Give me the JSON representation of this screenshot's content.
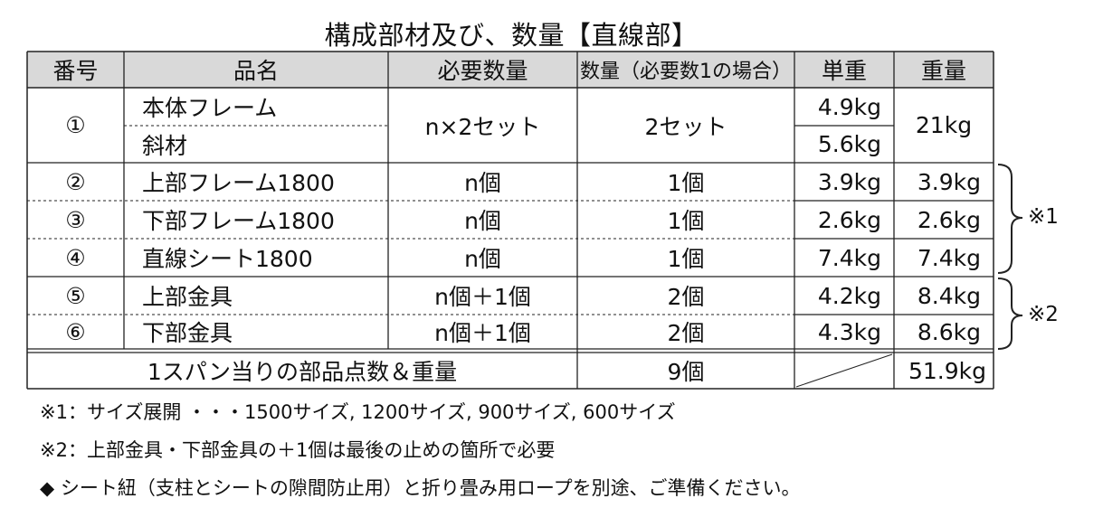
{
  "title": "構成部材及び、数量【直線部】",
  "header": {
    "no": "番号",
    "name": "品名",
    "required_qty": "必要数量",
    "qty_n1": "数量（必要数1の場合）",
    "unit_weight": "単重",
    "weight": "重量"
  },
  "rows": [
    {
      "no": "①",
      "name": "本体フレーム",
      "required_qty": "n×2セット",
      "qty": "2セット",
      "unit_weight": "4.9kg",
      "weight": "21kg"
    },
    {
      "name": "斜材",
      "unit_weight": "5.6kg"
    },
    {
      "no": "②",
      "name": "上部フレーム1800",
      "required_qty": "n個",
      "qty": "1個",
      "unit_weight": "3.9kg",
      "weight": "3.9kg"
    },
    {
      "no": "③",
      "name": "下部フレーム1800",
      "required_qty": "n個",
      "qty": "1個",
      "unit_weight": "2.6kg",
      "weight": "2.6kg"
    },
    {
      "no": "④",
      "name": "直線シート1800",
      "required_qty": "n個",
      "qty": "1個",
      "unit_weight": "7.4kg",
      "weight": "7.4kg"
    },
    {
      "no": "⑤",
      "name": "上部金具",
      "required_qty": "n個＋1個",
      "qty": "2個",
      "unit_weight": "4.2kg",
      "weight": "8.4kg"
    },
    {
      "no": "⑥",
      "name": "下部金具",
      "required_qty": "n個＋1個",
      "qty": "2個",
      "unit_weight": "4.3kg",
      "weight": "8.6kg"
    }
  ],
  "total": {
    "label": "1スパン当りの部品点数＆重量",
    "qty": "9個",
    "weight": "51.9kg"
  },
  "brackets": {
    "b1": "※1",
    "b2": "※2"
  },
  "notes": [
    "※1：サイズ展開 ・・・1500サイズ, 1200サイズ, 900サイズ, 600サイズ",
    "※2：上部金具・下部金具の＋1個は最後の止めの箇所で必要",
    "◆ シート紐（支柱とシートの隙間防止用）と折り畳み用ロープを別途、ご準備ください。"
  ]
}
